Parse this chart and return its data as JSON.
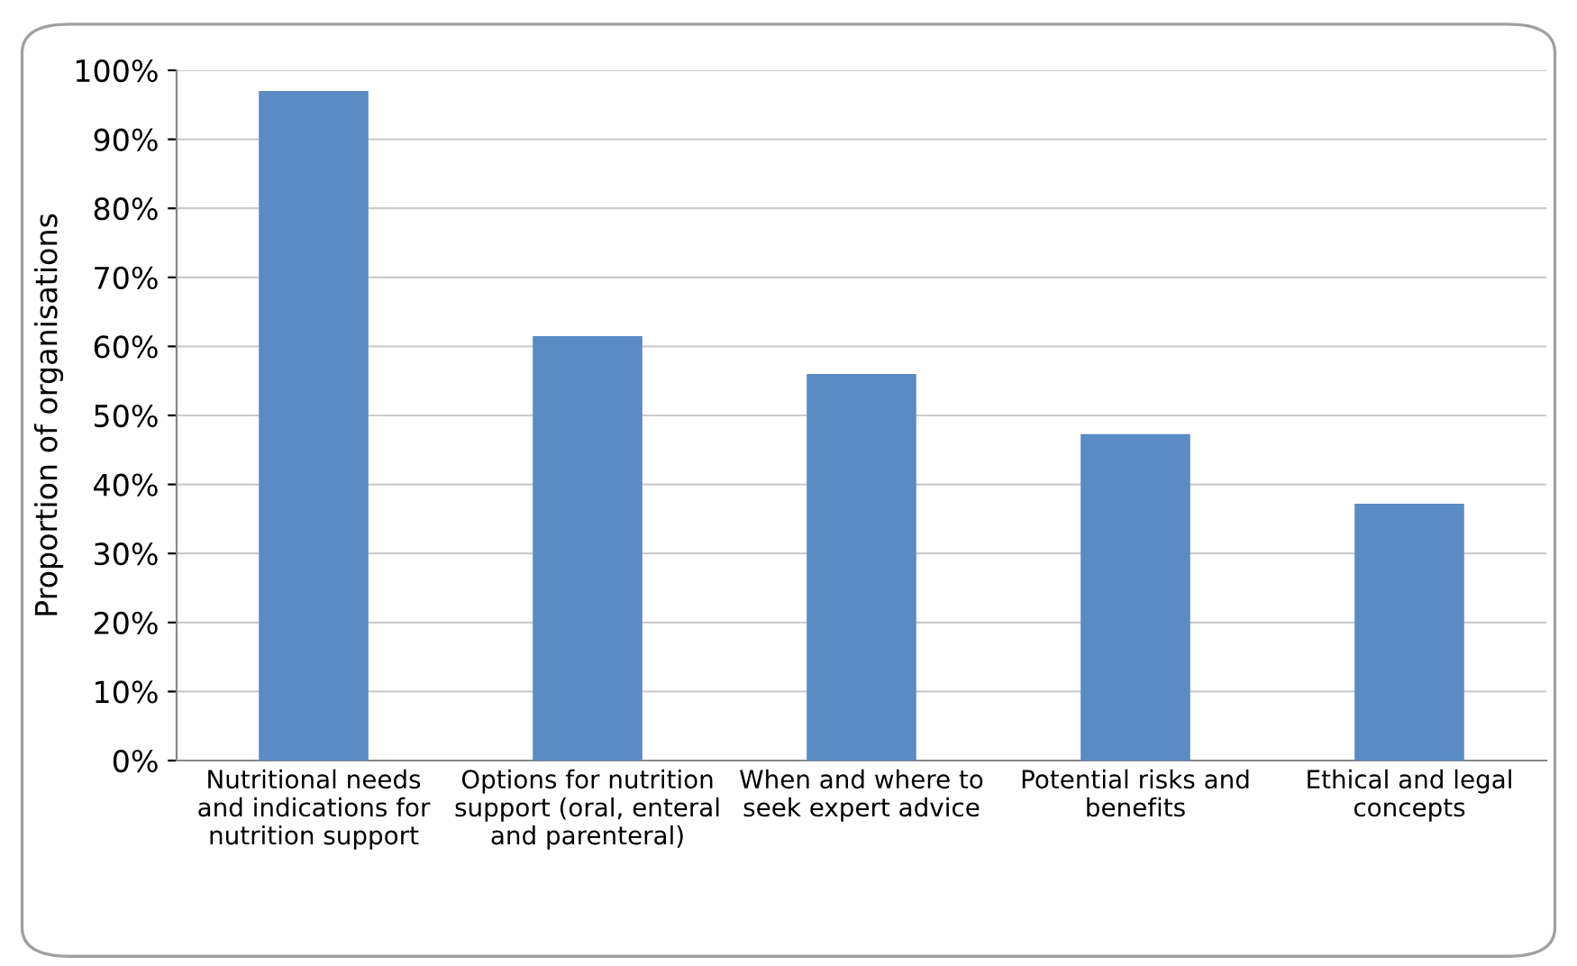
{
  "chart_data": {
    "type": "bar",
    "ylabel": "Proportion of organisations",
    "categories": [
      "Nutritional needs\nand indications for\nnutrition support",
      "Options for nutrition\nsupport (oral, enteral\nand parenteral)",
      "When and where to\nseek expert advice",
      "Potential risks and\nbenefits",
      "Ethical and legal\nconcepts"
    ],
    "values": [
      97,
      61.5,
      56,
      47.3,
      37.2
    ],
    "color": "#5b8bc5",
    "ylim": [
      0,
      100
    ],
    "yticks": [
      {
        "value": 0,
        "label": "0%"
      },
      {
        "value": 10,
        "label": "10%"
      },
      {
        "value": 20,
        "label": "20%"
      },
      {
        "value": 30,
        "label": "30%"
      },
      {
        "value": 40,
        "label": "40%"
      },
      {
        "value": 50,
        "label": "50%"
      },
      {
        "value": 60,
        "label": "60%"
      },
      {
        "value": 70,
        "label": "70%"
      },
      {
        "value": 80,
        "label": "80%"
      },
      {
        "value": 90,
        "label": "90%"
      },
      {
        "value": 100,
        "label": "100%"
      }
    ],
    "grid": "y",
    "legend": false
  }
}
